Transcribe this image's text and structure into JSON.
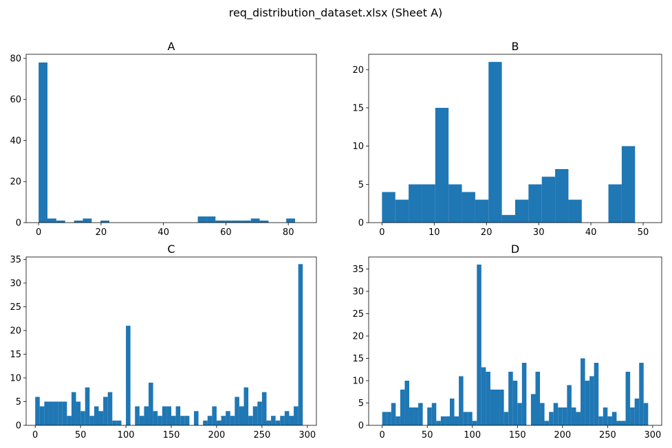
{
  "figure": {
    "suptitle": "req_distribution_dataset.xlsx (Sheet A)",
    "bar_color": "#1f77b4"
  },
  "chart_data": [
    {
      "type": "bar",
      "title": "A",
      "xlabel": "",
      "ylabel": "",
      "bins": [
        [
          0,
          2.833,
          78
        ],
        [
          2.833,
          5.667,
          2
        ],
        [
          5.667,
          8.5,
          1
        ],
        [
          11.333,
          14.167,
          1
        ],
        [
          14.167,
          17,
          2
        ],
        [
          19.833,
          22.667,
          1
        ],
        [
          51,
          53.833,
          3
        ],
        [
          53.833,
          56.667,
          3
        ],
        [
          56.667,
          59.5,
          1
        ],
        [
          59.5,
          62.333,
          1
        ],
        [
          62.333,
          65.167,
          1
        ],
        [
          65.167,
          68,
          1
        ],
        [
          68,
          70.833,
          2
        ],
        [
          70.833,
          73.667,
          1
        ],
        [
          79.333,
          82.167,
          2
        ]
      ],
      "xlim": [
        -4,
        89
      ],
      "ylim": [
        0,
        82
      ],
      "xticks": [
        0,
        20,
        40,
        60,
        80
      ],
      "yticks": [
        0,
        20,
        40,
        60,
        80
      ]
    },
    {
      "type": "bar",
      "title": "B",
      "xlabel": "",
      "ylabel": "",
      "bins": [
        [
          0,
          2.55,
          4
        ],
        [
          2.55,
          5.1,
          3
        ],
        [
          5.1,
          7.65,
          5
        ],
        [
          7.65,
          10.2,
          5
        ],
        [
          10.2,
          12.75,
          15
        ],
        [
          12.75,
          15.3,
          5
        ],
        [
          15.3,
          17.85,
          4
        ],
        [
          17.85,
          20.4,
          3
        ],
        [
          20.4,
          22.95,
          21
        ],
        [
          22.95,
          25.5,
          1
        ],
        [
          25.5,
          28.05,
          3
        ],
        [
          28.05,
          30.6,
          5
        ],
        [
          30.6,
          33.15,
          6
        ],
        [
          33.15,
          35.7,
          7
        ],
        [
          35.7,
          38.25,
          3
        ],
        [
          43.35,
          45.9,
          5
        ],
        [
          45.9,
          48.45,
          10
        ]
      ],
      "xlim": [
        -2.55,
        53.55
      ],
      "ylim": [
        0,
        22
      ],
      "xticks": [
        0,
        10,
        20,
        30,
        40,
        50
      ],
      "yticks": [
        0,
        5,
        10,
        15,
        20
      ]
    },
    {
      "type": "bar",
      "title": "C",
      "xlabel": "",
      "ylabel": "",
      "bins": [
        [
          0,
          5,
          6
        ],
        [
          5,
          10,
          4
        ],
        [
          10,
          15,
          5
        ],
        [
          15,
          20,
          5
        ],
        [
          20,
          25,
          5
        ],
        [
          25,
          30,
          5
        ],
        [
          30,
          35,
          5
        ],
        [
          35,
          40,
          2
        ],
        [
          40,
          45,
          7
        ],
        [
          45,
          50,
          5
        ],
        [
          50,
          55,
          3
        ],
        [
          55,
          60,
          8
        ],
        [
          60,
          65,
          2
        ],
        [
          65,
          70,
          4
        ],
        [
          70,
          75,
          3
        ],
        [
          75,
          80,
          6
        ],
        [
          80,
          85,
          7
        ],
        [
          85,
          90,
          1
        ],
        [
          90,
          95,
          1
        ],
        [
          100,
          105,
          21
        ],
        [
          110,
          115,
          4
        ],
        [
          115,
          120,
          2
        ],
        [
          120,
          125,
          4
        ],
        [
          125,
          130,
          9
        ],
        [
          130,
          135,
          3
        ],
        [
          135,
          140,
          2
        ],
        [
          140,
          145,
          4
        ],
        [
          145,
          150,
          4
        ],
        [
          150,
          155,
          2
        ],
        [
          155,
          160,
          4
        ],
        [
          160,
          165,
          2
        ],
        [
          165,
          170,
          2
        ],
        [
          175,
          180,
          3
        ],
        [
          185,
          190,
          1
        ],
        [
          190,
          195,
          2
        ],
        [
          195,
          200,
          4
        ],
        [
          200,
          205,
          1
        ],
        [
          205,
          210,
          2
        ],
        [
          210,
          215,
          3
        ],
        [
          215,
          220,
          2
        ],
        [
          220,
          225,
          6
        ],
        [
          225,
          230,
          4
        ],
        [
          230,
          235,
          8
        ],
        [
          235,
          240,
          2
        ],
        [
          240,
          245,
          4
        ],
        [
          245,
          250,
          5
        ],
        [
          250,
          255,
          7
        ],
        [
          255,
          260,
          1
        ],
        [
          260,
          265,
          2
        ],
        [
          265,
          270,
          1
        ],
        [
          270,
          275,
          2
        ],
        [
          275,
          280,
          3
        ],
        [
          280,
          285,
          2
        ],
        [
          285,
          290,
          4
        ],
        [
          290,
          295,
          34
        ]
      ],
      "xlim": [
        -10,
        310
      ],
      "ylim": [
        0,
        35.5
      ],
      "xticks": [
        0,
        50,
        100,
        150,
        200,
        250,
        300
      ],
      "yticks": [
        0,
        5,
        10,
        15,
        20,
        25,
        30,
        35
      ]
    },
    {
      "type": "bar",
      "title": "D",
      "xlabel": "",
      "ylabel": "",
      "bins": [
        [
          0,
          5,
          3
        ],
        [
          5,
          10,
          3
        ],
        [
          10,
          15,
          5
        ],
        [
          15,
          20,
          2
        ],
        [
          20,
          25,
          8
        ],
        [
          25,
          30,
          10
        ],
        [
          30,
          35,
          4
        ],
        [
          35,
          40,
          4
        ],
        [
          40,
          45,
          5
        ],
        [
          45,
          50,
          0
        ],
        [
          50,
          55,
          4
        ],
        [
          55,
          60,
          5
        ],
        [
          60,
          65,
          1
        ],
        [
          65,
          70,
          2
        ],
        [
          70,
          75,
          2
        ],
        [
          75,
          80,
          6
        ],
        [
          80,
          85,
          2
        ],
        [
          85,
          90,
          11
        ],
        [
          90,
          95,
          3
        ],
        [
          95,
          100,
          3
        ],
        [
          100,
          105,
          1
        ],
        [
          105,
          110,
          36
        ],
        [
          110,
          115,
          13
        ],
        [
          115,
          120,
          12
        ],
        [
          120,
          125,
          8
        ],
        [
          125,
          130,
          8
        ],
        [
          130,
          135,
          8
        ],
        [
          135,
          140,
          3
        ],
        [
          140,
          145,
          12
        ],
        [
          145,
          150,
          10
        ],
        [
          150,
          155,
          5
        ],
        [
          155,
          160,
          14
        ],
        [
          160,
          165,
          0
        ],
        [
          165,
          170,
          7
        ],
        [
          170,
          175,
          12
        ],
        [
          175,
          180,
          5
        ],
        [
          180,
          185,
          1
        ],
        [
          185,
          190,
          3
        ],
        [
          190,
          195,
          5
        ],
        [
          195,
          200,
          4
        ],
        [
          200,
          205,
          4
        ],
        [
          205,
          210,
          9
        ],
        [
          210,
          215,
          4
        ],
        [
          215,
          220,
          3
        ],
        [
          220,
          225,
          15
        ],
        [
          225,
          230,
          10
        ],
        [
          230,
          235,
          11
        ],
        [
          235,
          240,
          14
        ],
        [
          240,
          245,
          2
        ],
        [
          245,
          250,
          4
        ],
        [
          250,
          255,
          2
        ],
        [
          255,
          260,
          3
        ],
        [
          260,
          265,
          1
        ],
        [
          265,
          270,
          1
        ],
        [
          270,
          275,
          12
        ],
        [
          275,
          280,
          4
        ],
        [
          280,
          285,
          6
        ],
        [
          285,
          290,
          14
        ],
        [
          290,
          295,
          5
        ]
      ],
      "xlim": [
        -15,
        310
      ],
      "ylim": [
        0,
        37.7
      ],
      "xticks": [
        0,
        50,
        100,
        150,
        200,
        250,
        300
      ],
      "yticks": [
        0,
        5,
        10,
        15,
        20,
        25,
        30,
        35
      ]
    }
  ]
}
